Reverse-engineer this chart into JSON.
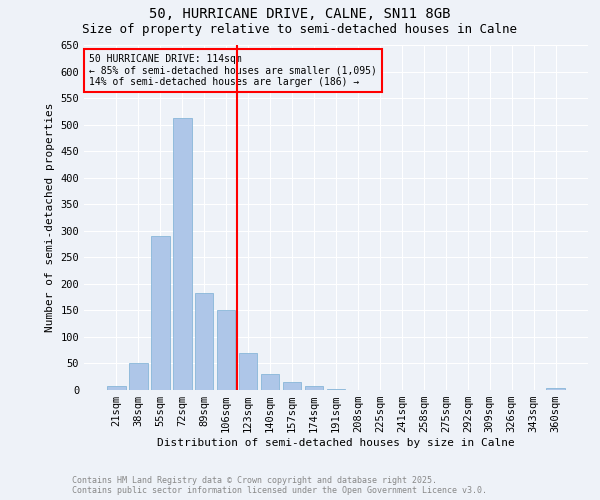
{
  "title1": "50, HURRICANE DRIVE, CALNE, SN11 8GB",
  "title2": "Size of property relative to semi-detached houses in Calne",
  "xlabel": "Distribution of semi-detached houses by size in Calne",
  "ylabel": "Number of semi-detached properties",
  "categories": [
    "21sqm",
    "38sqm",
    "55sqm",
    "72sqm",
    "89sqm",
    "106sqm",
    "123sqm",
    "140sqm",
    "157sqm",
    "174sqm",
    "191sqm",
    "208sqm",
    "225sqm",
    "241sqm",
    "258sqm",
    "275sqm",
    "292sqm",
    "309sqm",
    "326sqm",
    "343sqm",
    "360sqm"
  ],
  "values": [
    7,
    51,
    290,
    512,
    183,
    150,
    70,
    30,
    15,
    8,
    2,
    0,
    0,
    0,
    0,
    0,
    0,
    0,
    0,
    0,
    3
  ],
  "bar_color": "#aec6e8",
  "bar_edge_color": "#7aafd4",
  "vline_x": 6.0,
  "vline_color": "red",
  "annotation_title": "50 HURRICANE DRIVE: 114sqm",
  "annotation_line1": "← 85% of semi-detached houses are smaller (1,095)",
  "annotation_line2": "14% of semi-detached houses are larger (186) →",
  "annotation_box_color": "red",
  "ylim": [
    0,
    650
  ],
  "yticks": [
    0,
    50,
    100,
    150,
    200,
    250,
    300,
    350,
    400,
    450,
    500,
    550,
    600,
    650
  ],
  "footer1": "Contains HM Land Registry data © Crown copyright and database right 2025.",
  "footer2": "Contains public sector information licensed under the Open Government Licence v3.0.",
  "bg_color": "#eef2f8",
  "grid_color": "white",
  "title_fontsize": 10,
  "subtitle_fontsize": 9,
  "axis_label_fontsize": 8,
  "tick_fontsize": 7.5,
  "footer_fontsize": 6,
  "annot_fontsize": 7
}
